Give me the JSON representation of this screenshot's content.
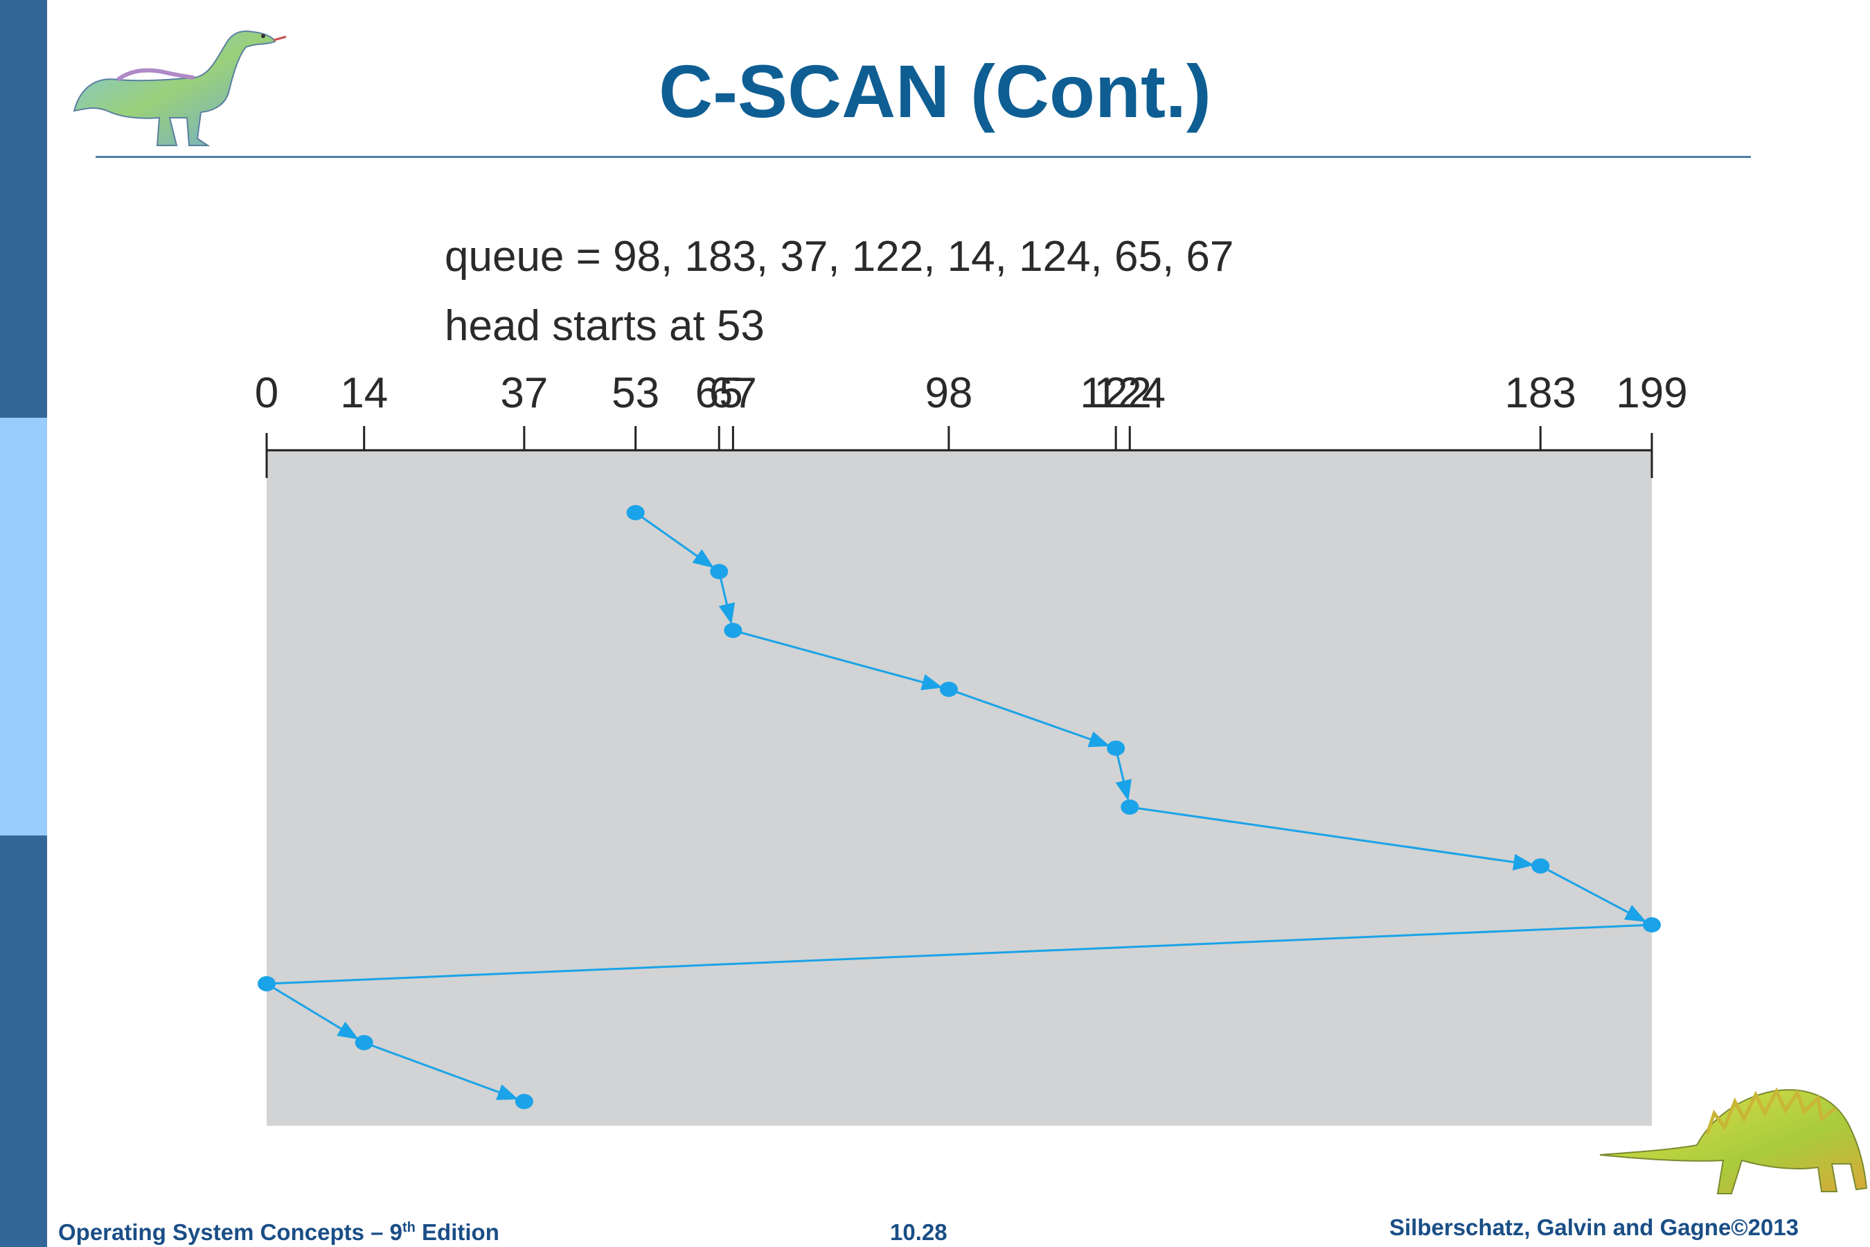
{
  "slide": {
    "title": "C-SCAN (Cont.)",
    "queue_line": "queue = 98, 183, 37, 122, 14, 124, 65, 67",
    "head_line": "head starts at 53"
  },
  "footer": {
    "left_prefix": "Operating System Concepts – 9",
    "left_sup": "th",
    "left_suffix": " Edition",
    "page": "10.28",
    "right": "Silberschatz, Galvin and Gagne©2013"
  },
  "diagram": {
    "axis_labels": [
      "0",
      "14",
      "37",
      "53",
      "65",
      "67",
      "98",
      "122",
      "124",
      "183",
      "199"
    ],
    "axis_ticks": [
      0,
      14,
      37,
      53,
      65,
      67,
      98,
      122,
      124,
      183,
      199
    ],
    "axis_range": [
      0,
      199
    ],
    "head_path": [
      53,
      65,
      67,
      98,
      122,
      124,
      183,
      199,
      0,
      14,
      37
    ],
    "colors": {
      "path": "#1aa3e8",
      "panel": "#d1d3d4",
      "axis": "#222222"
    }
  },
  "icons": [
    "dinosaur-icon",
    "dinosaur-icon"
  ]
}
